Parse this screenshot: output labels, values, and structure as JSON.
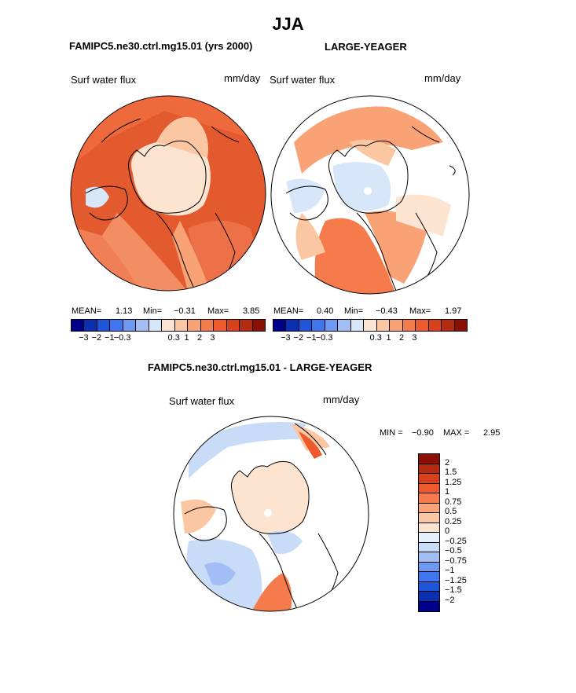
{
  "title": "JJA",
  "left": {
    "heading": "FAMIPC5.ne30.ctrl.mg15.01 (yrs 2000)",
    "var_label": "Surf water flux",
    "unit": "mm/day",
    "mean_label": "MEAN=",
    "mean": "1.13",
    "min_label": "Min=",
    "min": "−0.31",
    "max_label": "Max=",
    "max": "3.85"
  },
  "right": {
    "heading": "LARGE-YEAGER",
    "var_label": "Surf water flux",
    "unit": "mm/day",
    "mean_label": "MEAN=",
    "mean": "0.40",
    "min_label": "Min=",
    "min": "−0.43",
    "max_label": "Max=",
    "max": "1.97"
  },
  "top_colorbar": {
    "colors": [
      "#00008b",
      "#0a2fb0",
      "#1f55d8",
      "#3f76ef",
      "#6f98f2",
      "#a3bdf5",
      "#d8e6fa",
      "#fde4d0",
      "#fbc7a2",
      "#f8a275",
      "#f57b4c",
      "#ee5a2c",
      "#d9401c",
      "#b52b12",
      "#8b0f05"
    ],
    "ticks": [
      "−3",
      "−2",
      "−1",
      "−0.3",
      "0.3",
      "1",
      "2",
      "3"
    ]
  },
  "diff": {
    "heading": "FAMIPC5.ne30.ctrl.mg15.01 - LARGE-YEAGER",
    "var_label": "Surf water flux",
    "unit": "mm/day",
    "min_label": "MIN =",
    "min": "−0.90",
    "max_label": "MAX =",
    "max": "2.95"
  },
  "diff_colorbar": {
    "colors": [
      "#8b0f05",
      "#b52b12",
      "#d9401c",
      "#ee5a2c",
      "#f57b4c",
      "#f8a275",
      "#fbc7a2",
      "#fde4d0",
      "#e6f0fb",
      "#c8dcf7",
      "#a3bdf5",
      "#6f98f2",
      "#3f76ef",
      "#1f55d8",
      "#0a2fb0",
      "#00008b"
    ],
    "ticks": [
      "2",
      "1.5",
      "1.25",
      "1",
      "0.75",
      "0.5",
      "0.25",
      "0",
      "−0.25",
      "−0.5",
      "−0.75",
      "−1",
      "−1.25",
      "−1.5",
      "−2"
    ]
  }
}
